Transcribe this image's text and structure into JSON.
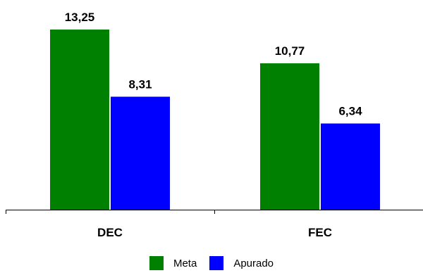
{
  "chart_data": {
    "type": "bar",
    "categories": [
      "DEC",
      "FEC"
    ],
    "series": [
      {
        "name": "Meta",
        "values": [
          13.25,
          10.77
        ],
        "labels": [
          "13,25",
          "10,77"
        ],
        "color": "#008000"
      },
      {
        "name": "Apurado",
        "values": [
          8.31,
          6.34
        ],
        "labels": [
          "8,31",
          "6,34"
        ],
        "color": "#0000ff"
      }
    ],
    "title": "",
    "xlabel": "",
    "ylabel": "",
    "ylim": [
      0,
      13.25
    ],
    "grid": false,
    "legend_position": "bottom"
  },
  "legend": {
    "items": [
      {
        "label": "Meta",
        "color": "#008000"
      },
      {
        "label": "Apurado",
        "color": "#0000ff"
      }
    ]
  }
}
